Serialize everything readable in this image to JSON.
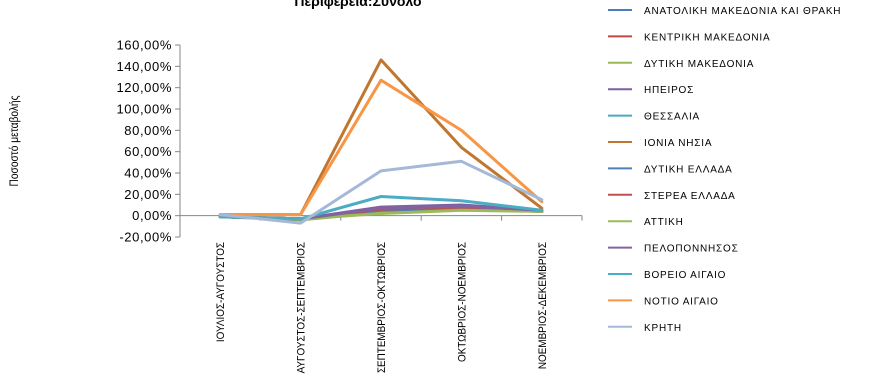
{
  "chart_data": {
    "type": "line",
    "title": "Περιφέρεια:Σύνολο",
    "xlabel": "",
    "ylabel": "Ποσοστό μεταβολής",
    "categories": [
      "ΙΟΥΛΙΟΣ-ΑΥΓΟΥΣΤΟΣ",
      "ΑΥΓΟΥΣΤΟΣ-ΣΕΠΤΕΜΒΡΙΟΣ",
      "ΣΕΠΤΕΜΒΡΙΟΣ-ΟΚΤΩΒΡΙΟΣ",
      "ΟΚΤΩΒΡΙΟΣ-ΝΟΕΜΒΡΙΟΣ",
      "ΝΟΕΜΒΡΙΟΣ-ΔΕΚΕΜΒΡΙΟΣ"
    ],
    "ylim": [
      -20,
      160
    ],
    "yticks": [
      -20,
      0,
      20,
      40,
      60,
      80,
      100,
      120,
      140,
      160
    ],
    "ytick_labels": [
      "-20,00%",
      "0,00%",
      "20,00%",
      "40,00%",
      "60,00%",
      "80,00%",
      "100,00%",
      "120,00%",
      "140,00%",
      "160,00%"
    ],
    "grid": false,
    "legend_position": "right",
    "series": [
      {
        "name": "ΑΝΑΤΟΛΙΚΗ ΜΑΚΕΔΟΝΙΑ ΚΑΙ ΘΡΑΚΗ",
        "color": "#4a7ebb",
        "values": [
          -1,
          -3,
          5,
          7,
          4
        ]
      },
      {
        "name": "ΚΕΝΤΡΙΚΗ ΜΑΚΕΔΟΝΙΑ",
        "color": "#be4b48",
        "values": [
          -1,
          -3,
          7,
          9,
          5
        ]
      },
      {
        "name": "ΔΥΤΙΚΗ ΜΑΚΕΔΟΝΙΑ",
        "color": "#98b954",
        "values": [
          -1,
          -4,
          3,
          6,
          4
        ]
      },
      {
        "name": "ΗΠΕΙΡΟΣ",
        "color": "#7d60a0",
        "values": [
          -1,
          -3,
          8,
          10,
          5
        ]
      },
      {
        "name": "ΘΕΣΣΑΛΙΑ",
        "color": "#46aac4",
        "values": [
          -1,
          -3,
          6,
          8,
          4
        ]
      },
      {
        "name": "ΙΟΝΙΑ ΝΗΣΙΑ",
        "color": "#c0762e",
        "values": [
          1,
          1,
          146,
          64,
          7
        ]
      },
      {
        "name": "ΔΥΤΙΚΗ ΕΛΛΑΔΑ",
        "color": "#4f81bd",
        "values": [
          -1,
          -3,
          5,
          7,
          4
        ]
      },
      {
        "name": "ΣΤΕΡΕΑ ΕΛΛΑΔΑ",
        "color": "#c0504d",
        "values": [
          -1,
          -3,
          6,
          8,
          4
        ]
      },
      {
        "name": "ΑΤΤΙΚΗ",
        "color": "#9bbb59",
        "values": [
          -1,
          -3,
          2,
          5,
          4
        ]
      },
      {
        "name": "ΠΕΛΟΠΟΝΝΗΣΟΣ",
        "color": "#8064a2",
        "values": [
          -1,
          -3,
          7,
          9,
          5
        ]
      },
      {
        "name": "ΒΟΡΕΙΟ ΑΙΓΑΙΟ",
        "color": "#4bacc6",
        "values": [
          -1,
          -3,
          18,
          14,
          5
        ]
      },
      {
        "name": "ΝΟΤΙΟ ΑΙΓΑΙΟ",
        "color": "#f79646",
        "values": [
          1,
          1,
          127,
          80,
          13
        ]
      },
      {
        "name": "ΚΡΗΤΗ",
        "color": "#a5b9d6",
        "values": [
          1,
          -7,
          42,
          51,
          15
        ]
      }
    ]
  }
}
